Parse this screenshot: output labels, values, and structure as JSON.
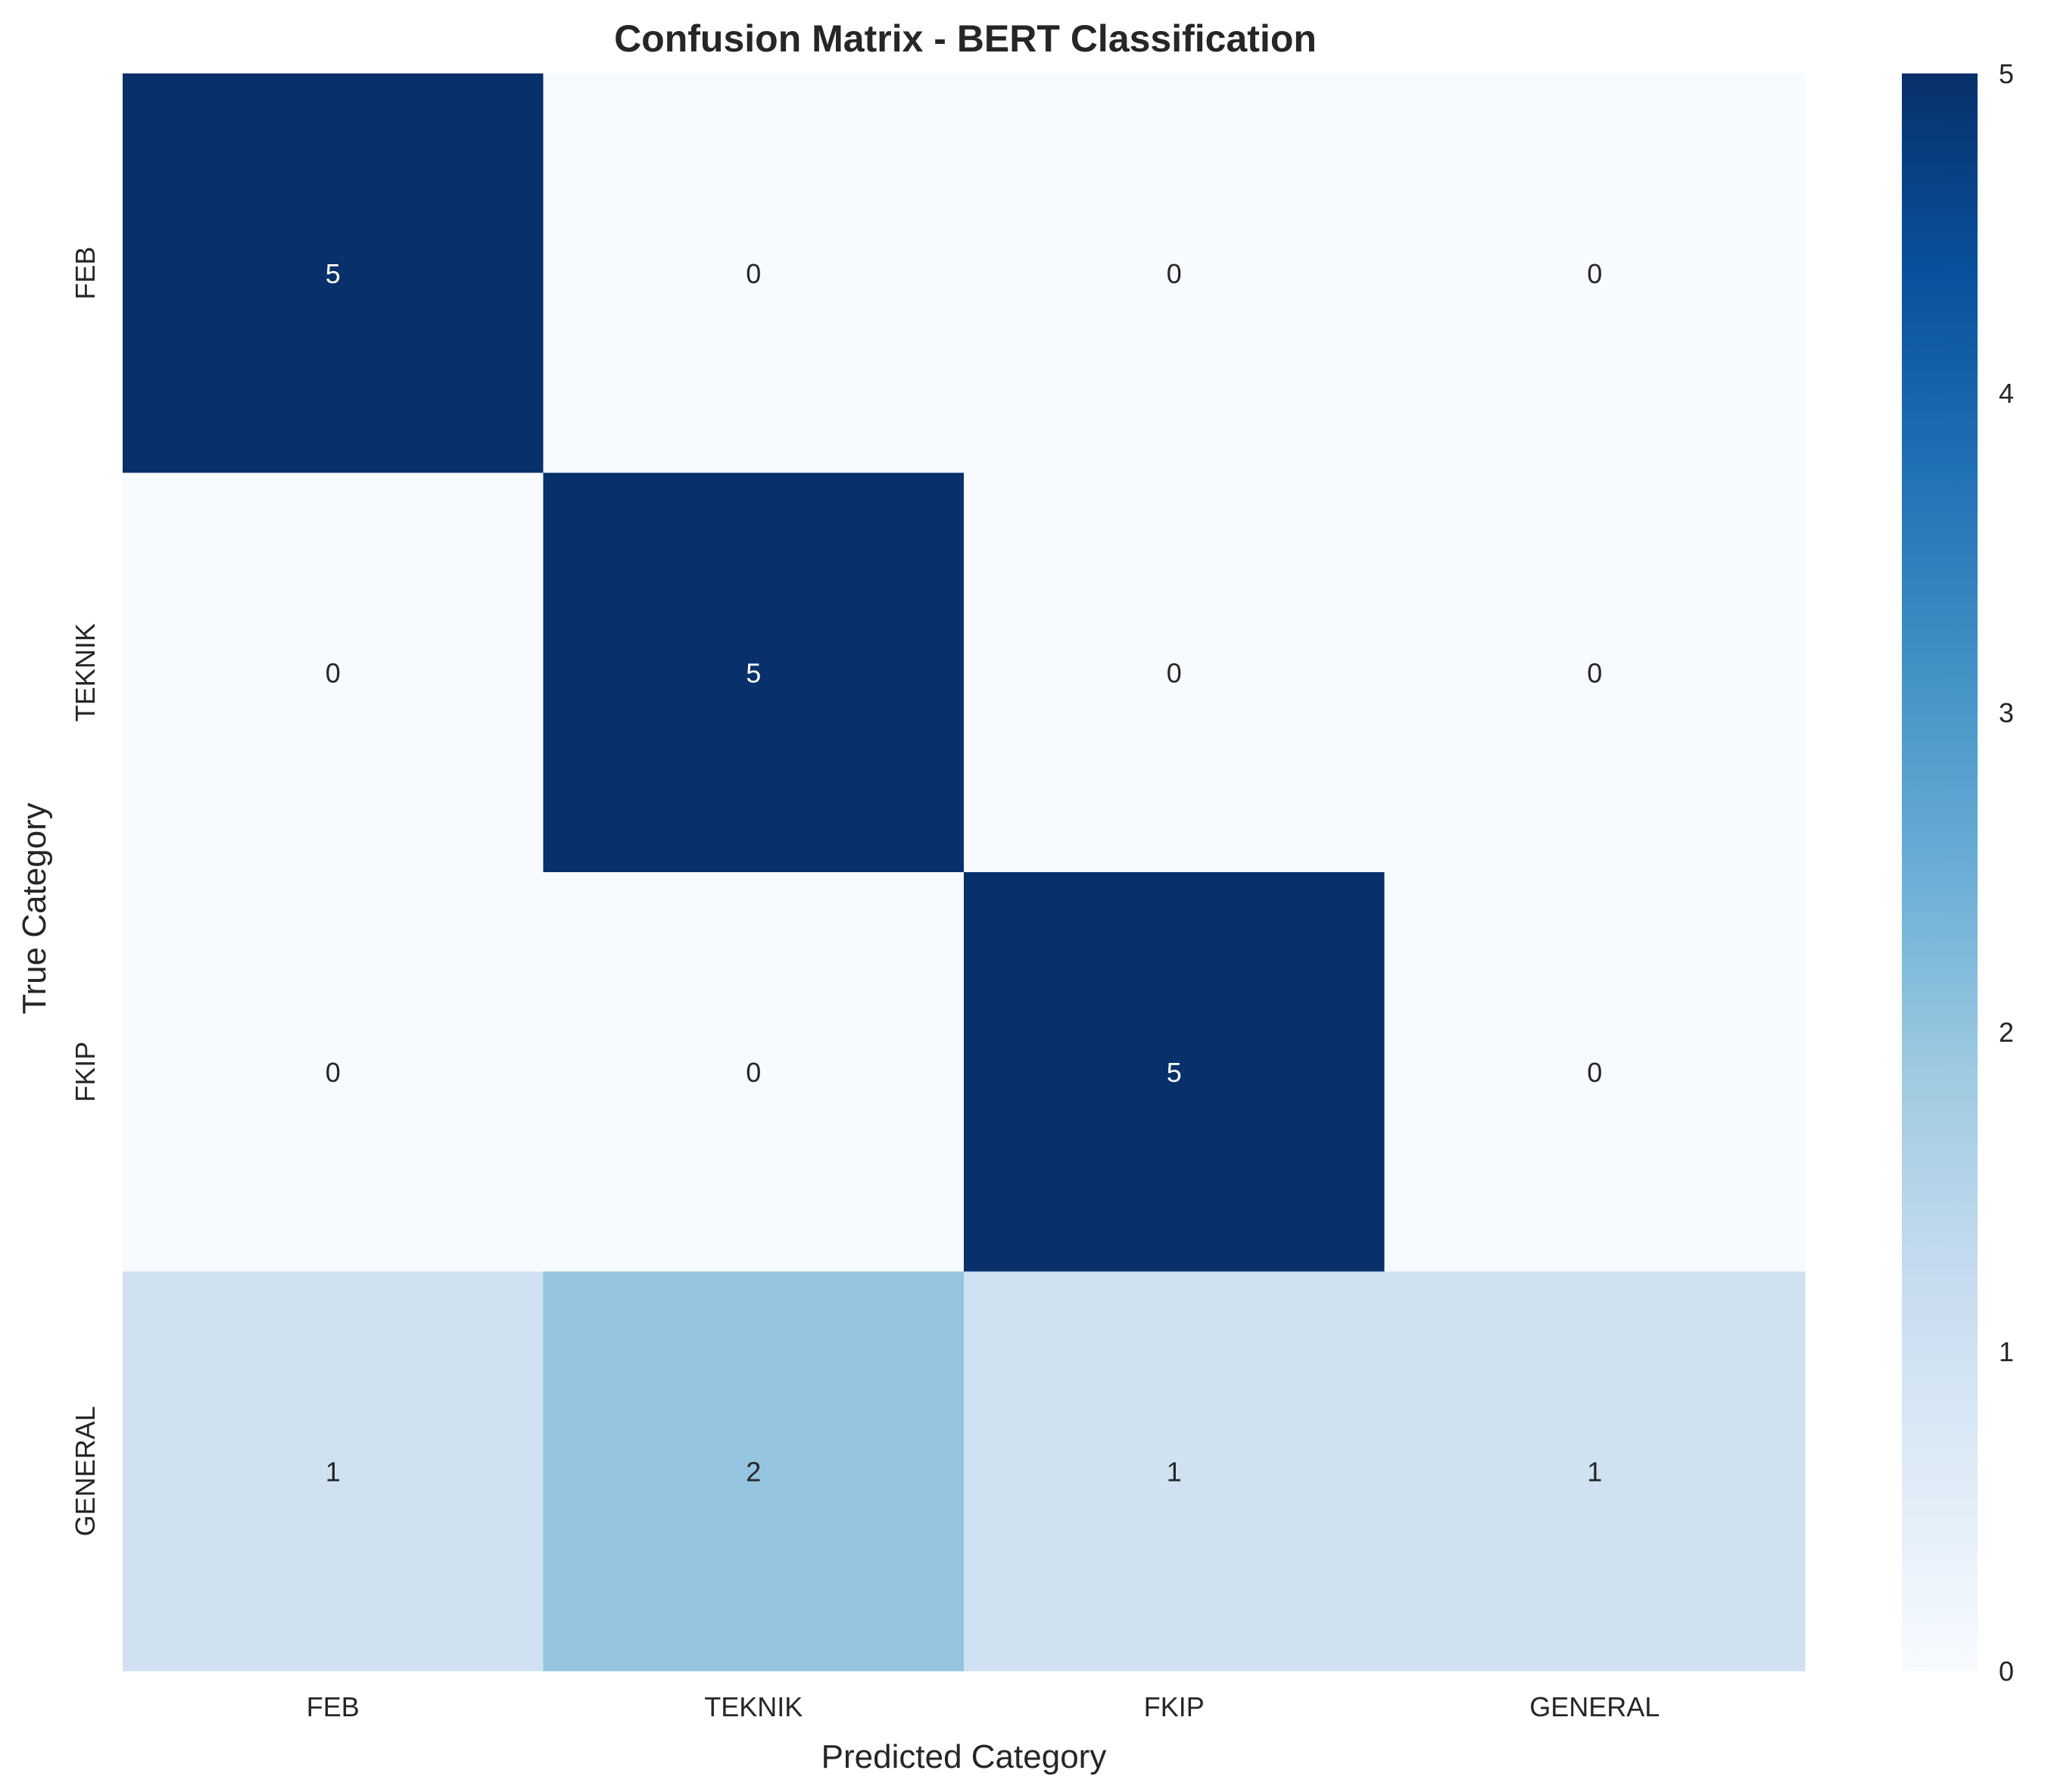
{
  "chart_data": {
    "type": "heatmap",
    "title": "Confusion Matrix - BERT Classification",
    "xlabel": "Predicted Category",
    "ylabel": "True Category",
    "x_categories": [
      "FEB",
      "TEKNIK",
      "FKIP",
      "GENERAL"
    ],
    "y_categories": [
      "FEB",
      "TEKNIK",
      "FKIP",
      "GENERAL"
    ],
    "values": [
      [
        5,
        0,
        0,
        0
      ],
      [
        0,
        5,
        0,
        0
      ],
      [
        0,
        0,
        5,
        0
      ],
      [
        1,
        2,
        1,
        1
      ]
    ],
    "colorbar": {
      "min": 0,
      "max": 5,
      "ticks": [
        "0",
        "1",
        "2",
        "3",
        "4",
        "5"
      ],
      "colormap": "Blues"
    },
    "grid": false
  }
}
